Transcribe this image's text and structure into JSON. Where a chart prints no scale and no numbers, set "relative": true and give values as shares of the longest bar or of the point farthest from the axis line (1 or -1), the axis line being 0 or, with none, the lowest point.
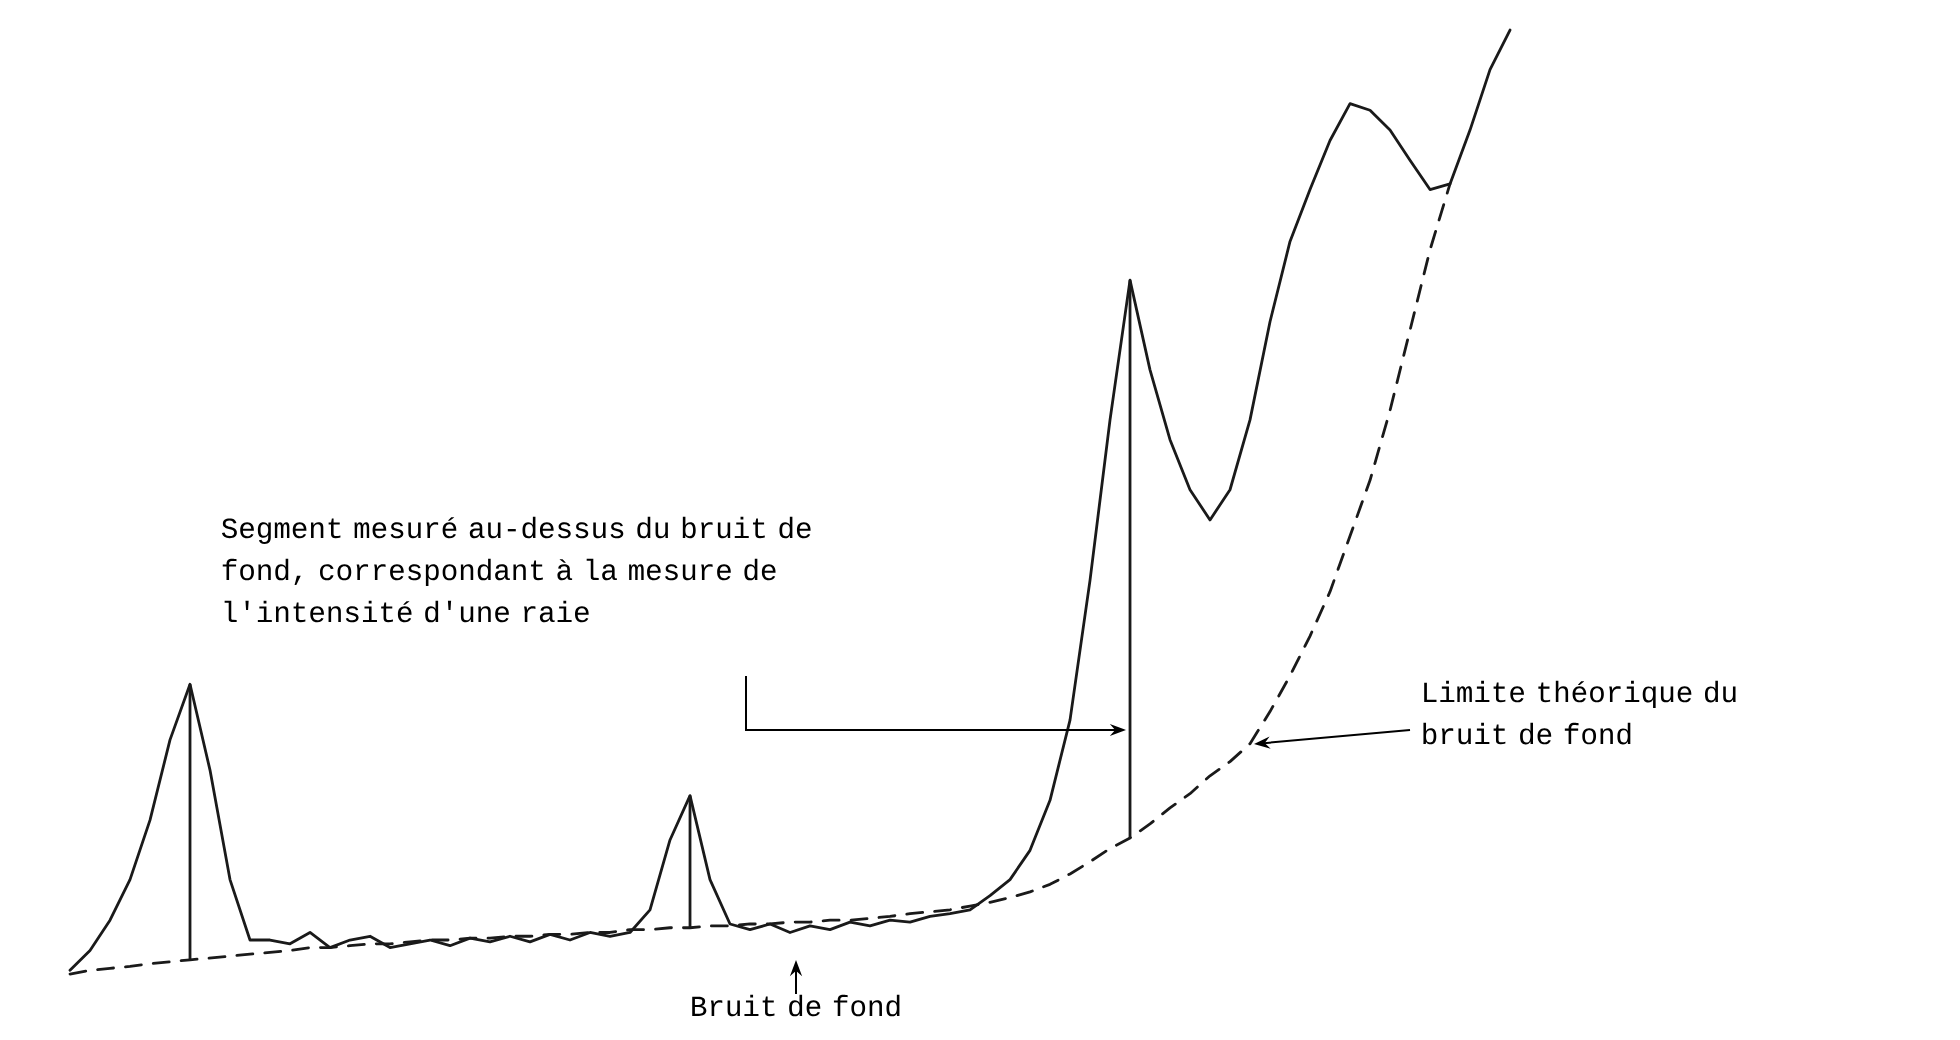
{
  "chart_data": {
    "type": "line",
    "relative": true,
    "categories": [
      null,
      null,
      null,
      null,
      null,
      null,
      null,
      null,
      null,
      null,
      null,
      null,
      null,
      null,
      null,
      null,
      null,
      null,
      null,
      null,
      null,
      null,
      null,
      null,
      null,
      null,
      null,
      null,
      null,
      null,
      null,
      null,
      null,
      null,
      null,
      null,
      null,
      null,
      null,
      null,
      null,
      null,
      null,
      null,
      null,
      null,
      null,
      null,
      null,
      null,
      null,
      null,
      null,
      null,
      null,
      null,
      null,
      null,
      null,
      null,
      null,
      null,
      null,
      null,
      null,
      null,
      null,
      null,
      null,
      null,
      null,
      null,
      null
    ],
    "series": [
      {
        "color": "#1a1a1a",
        "line_style": "solid",
        "values": [
          0.004,
          0.025,
          0.057,
          0.1,
          0.163,
          0.248,
          0.307,
          0.216,
          0.1,
          0.036,
          0.036,
          0.032,
          0.044,
          0.028,
          0.036,
          0.04,
          0.028,
          0.032,
          0.036,
          0.03,
          0.038,
          0.034,
          0.04,
          0.034,
          0.042,
          0.036,
          0.044,
          0.04,
          0.044,
          0.068,
          0.142,
          0.189,
          0.1,
          0.053,
          0.047,
          0.053,
          0.044,
          0.051,
          0.047,
          0.055,
          0.051,
          0.057,
          0.055,
          0.061,
          0.064,
          0.068,
          0.083,
          0.1,
          0.131,
          0.184,
          0.269,
          0.417,
          0.587,
          0.735,
          0.64,
          0.566,
          0.513,
          0.481,
          0.513,
          0.587,
          0.691,
          0.776,
          0.831,
          0.883,
          0.922,
          0.915,
          0.894,
          0.862,
          0.831,
          0.837,
          0.894,
          0.958,
          1.0
        ]
      },
      {
        "color": "#1a1a1a",
        "line_style": "dashed",
        "values": [
          0,
          0.004,
          0.006,
          0.008,
          0.011,
          0.013,
          0.015,
          0.017,
          0.019,
          0.021,
          0.023,
          0.025,
          0.028,
          0.028,
          0.03,
          0.032,
          0.032,
          0.034,
          0.036,
          0.036,
          0.038,
          0.038,
          0.04,
          0.04,
          0.042,
          0.042,
          0.044,
          0.044,
          0.047,
          0.047,
          0.049,
          0.049,
          0.051,
          0.051,
          0.053,
          0.053,
          0.055,
          0.055,
          0.057,
          0.057,
          0.059,
          0.061,
          0.064,
          0.066,
          0.068,
          0.072,
          0.076,
          0.081,
          0.087,
          0.095,
          0.106,
          0.119,
          0.133,
          0.144,
          0.159,
          0.176,
          0.191,
          0.21,
          0.225,
          0.244,
          0.278,
          0.316,
          0.358,
          0.405,
          0.464,
          0.523,
          0.597,
          0.682,
          0.767,
          0.837,
          null,
          null,
          null
        ]
      }
    ],
    "annotations": [
      "Segment mesuré au-dessus du bruit de fond, correspondant à la mesure de l'intensité d'une raie",
      "Limite théorique du bruit de fond",
      "Bruit de fond"
    ]
  }
}
